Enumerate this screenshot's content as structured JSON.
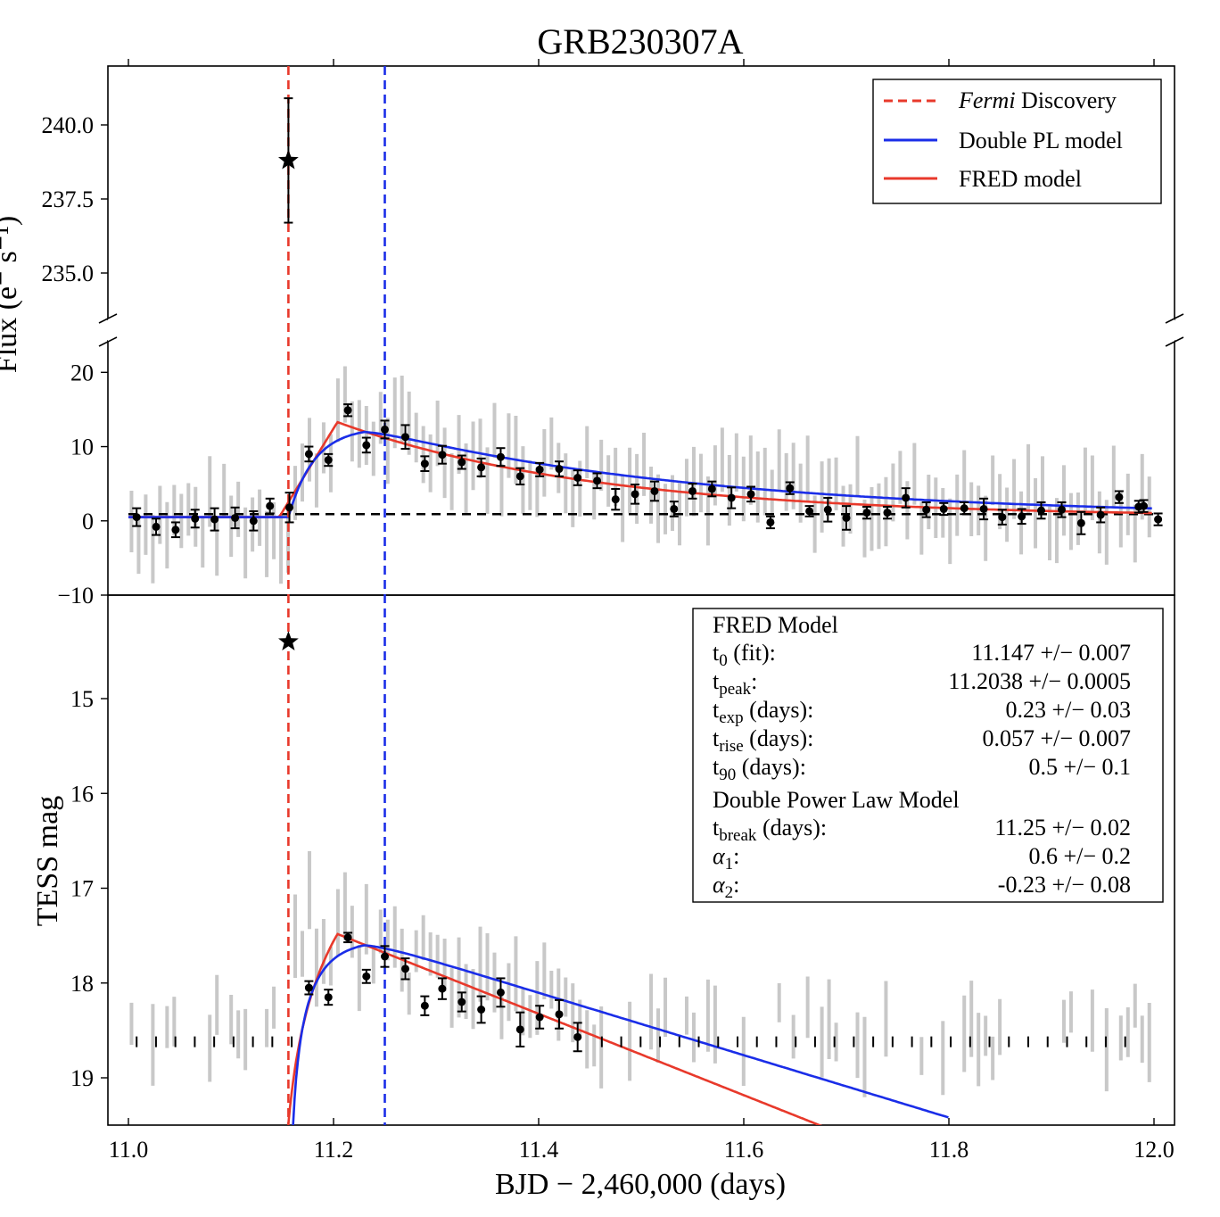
{
  "chart_data": {
    "type": "scatter",
    "title": "GRB230307A",
    "xlabel": "BJD − 2,460,000 (days)",
    "xlim": [
      10.98,
      12.02
    ],
    "x_ticks": [
      "11.0",
      "11.2",
      "11.4",
      "11.6",
      "11.8",
      "12.0"
    ],
    "top_panel": {
      "ylabel": "Flux (e⁻ s⁻¹)",
      "upper_ylim": [
        233.5,
        242
      ],
      "upper_ticks": [
        "235.0",
        "237.5",
        "240.0"
      ],
      "lower_ylim": [
        -10,
        21
      ],
      "lower_ticks": [
        "−10",
        "0",
        "10",
        "20"
      ],
      "fermi_point": {
        "x": 11.156,
        "y": 238.8,
        "err": 2.1
      },
      "baseline": 0.9,
      "binned": [
        {
          "x": 11.008,
          "y": 0.5,
          "e": 1.2
        },
        {
          "x": 11.027,
          "y": -0.8,
          "e": 1.1
        },
        {
          "x": 11.046,
          "y": -1.2,
          "e": 1.0
        },
        {
          "x": 11.065,
          "y": 0.3,
          "e": 1.2
        },
        {
          "x": 11.084,
          "y": 0.2,
          "e": 1.5
        },
        {
          "x": 11.104,
          "y": 0.4,
          "e": 1.4
        },
        {
          "x": 11.122,
          "y": 0.0,
          "e": 1.3
        },
        {
          "x": 11.138,
          "y": 2.0,
          "e": 1.0
        },
        {
          "x": 11.157,
          "y": 1.8,
          "e": 2.0
        },
        {
          "x": 11.176,
          "y": 9.0,
          "e": 1.0
        },
        {
          "x": 11.195,
          "y": 8.2,
          "e": 0.8
        },
        {
          "x": 11.214,
          "y": 14.9,
          "e": 0.8
        },
        {
          "x": 11.232,
          "y": 10.2,
          "e": 1.0
        },
        {
          "x": 11.25,
          "y": 12.3,
          "e": 1.2
        },
        {
          "x": 11.27,
          "y": 11.3,
          "e": 1.6
        },
        {
          "x": 11.289,
          "y": 7.7,
          "e": 1.0
        },
        {
          "x": 11.306,
          "y": 8.9,
          "e": 1.2
        },
        {
          "x": 11.325,
          "y": 7.9,
          "e": 0.9
        },
        {
          "x": 11.344,
          "y": 7.2,
          "e": 1.2
        },
        {
          "x": 11.363,
          "y": 8.6,
          "e": 1.2
        },
        {
          "x": 11.382,
          "y": 6.0,
          "e": 1.1
        },
        {
          "x": 11.401,
          "y": 6.9,
          "e": 0.9
        },
        {
          "x": 11.42,
          "y": 7.0,
          "e": 1.0
        },
        {
          "x": 11.438,
          "y": 5.8,
          "e": 1.0
        },
        {
          "x": 11.457,
          "y": 5.4,
          "e": 1.0
        },
        {
          "x": 11.475,
          "y": 2.9,
          "e": 1.4
        },
        {
          "x": 11.494,
          "y": 3.6,
          "e": 1.3
        },
        {
          "x": 11.513,
          "y": 4.0,
          "e": 1.3
        },
        {
          "x": 11.532,
          "y": 1.6,
          "e": 1.0
        },
        {
          "x": 11.55,
          "y": 4.0,
          "e": 1.0
        },
        {
          "x": 11.569,
          "y": 4.3,
          "e": 1.0
        },
        {
          "x": 11.588,
          "y": 3.1,
          "e": 1.4
        },
        {
          "x": 11.607,
          "y": 3.6,
          "e": 1.0
        },
        {
          "x": 11.626,
          "y": -0.2,
          "e": 0.8
        },
        {
          "x": 11.645,
          "y": 4.4,
          "e": 0.8
        },
        {
          "x": 11.664,
          "y": 1.3,
          "e": 0.7
        },
        {
          "x": 11.682,
          "y": 1.5,
          "e": 1.6
        },
        {
          "x": 11.7,
          "y": 0.4,
          "e": 1.6
        },
        {
          "x": 11.72,
          "y": 1.1,
          "e": 0.8
        },
        {
          "x": 11.74,
          "y": 1.1,
          "e": 0.8
        },
        {
          "x": 11.758,
          "y": 3.1,
          "e": 1.3
        },
        {
          "x": 11.778,
          "y": 1.5,
          "e": 1.0
        },
        {
          "x": 11.795,
          "y": 1.6,
          "e": 0.8
        },
        {
          "x": 11.815,
          "y": 1.7,
          "e": 0.8
        },
        {
          "x": 11.834,
          "y": 1.6,
          "e": 1.4
        },
        {
          "x": 11.852,
          "y": 0.5,
          "e": 1.0
        },
        {
          "x": 11.871,
          "y": 0.6,
          "e": 1.0
        },
        {
          "x": 11.89,
          "y": 1.4,
          "e": 1.1
        },
        {
          "x": 11.91,
          "y": 1.5,
          "e": 1.0
        },
        {
          "x": 11.929,
          "y": -0.3,
          "e": 1.5
        },
        {
          "x": 11.948,
          "y": 0.8,
          "e": 1.0
        },
        {
          "x": 11.966,
          "y": 3.2,
          "e": 0.8
        },
        {
          "x": 11.985,
          "y": 1.9,
          "e": 0.8
        },
        {
          "x": 12.004,
          "y": 0.2,
          "e": 0.8
        },
        {
          "x": 11.99,
          "y": 2.0,
          "e": 0.8
        }
      ]
    },
    "bottom_panel": {
      "ylabel": "TESS mag",
      "ylim": [
        19.5,
        13.4
      ],
      "y_ticks": [
        "15",
        "16",
        "17",
        "18",
        "19"
      ],
      "fermi_point": {
        "x": 11.156,
        "y": 14.4
      },
      "limit_mag": 18.62,
      "binned": [
        {
          "x": 11.176,
          "y": 18.05,
          "e": 0.07
        },
        {
          "x": 11.195,
          "y": 18.15,
          "e": 0.08
        },
        {
          "x": 11.214,
          "y": 17.52,
          "e": 0.05
        },
        {
          "x": 11.232,
          "y": 17.93,
          "e": 0.07
        },
        {
          "x": 11.25,
          "y": 17.72,
          "e": 0.11
        },
        {
          "x": 11.27,
          "y": 17.85,
          "e": 0.11
        },
        {
          "x": 11.289,
          "y": 18.24,
          "e": 0.1
        },
        {
          "x": 11.306,
          "y": 18.06,
          "e": 0.11
        },
        {
          "x": 11.325,
          "y": 18.2,
          "e": 0.1
        },
        {
          "x": 11.344,
          "y": 18.28,
          "e": 0.14
        },
        {
          "x": 11.363,
          "y": 18.1,
          "e": 0.15
        },
        {
          "x": 11.382,
          "y": 18.49,
          "e": 0.18
        },
        {
          "x": 11.401,
          "y": 18.36,
          "e": 0.12
        },
        {
          "x": 11.42,
          "y": 18.33,
          "e": 0.15
        },
        {
          "x": 11.438,
          "y": 18.57,
          "e": 0.15
        }
      ]
    },
    "lines": {
      "fermi_discovery_x": 11.156,
      "break_x": 11.25
    },
    "legend": {
      "placement": "top-right",
      "entries": [
        {
          "prefix": "Fermi",
          "label": " Discovery",
          "color": "#e8392b",
          "dash": true
        },
        {
          "prefix": "",
          "label": "Double PL model",
          "color": "#1a2de8",
          "dash": false
        },
        {
          "prefix": "",
          "label": "FRED model",
          "color": "#e8392b",
          "dash": false
        }
      ]
    },
    "info_box": {
      "fred_heading": "FRED Model",
      "fred_rows": [
        {
          "sym": "t",
          "sub": "0",
          "suffix": " (fit):",
          "value": "11.147 +/−  0.007"
        },
        {
          "sym": "t",
          "sub": "peak",
          "suffix": ":",
          "value": "11.2038 +/− 0.0005"
        },
        {
          "sym": "t",
          "sub": "exp",
          "suffix": " (days):",
          "value": "0.23 +/−   0.03"
        },
        {
          "sym": "t",
          "sub": "rise",
          "suffix": " (days):",
          "value": "0.057 +/−  0.007"
        },
        {
          "sym": "t",
          "sub": "90",
          "suffix": " (days):",
          "value": "0.5 +/−    0.1"
        }
      ],
      "dpl_heading": "Double Power Law Model",
      "dpl_rows": [
        {
          "sym": "t",
          "sub": "break",
          "suffix": " (days):",
          "value": "11.25 +/−   0.02"
        },
        {
          "sym": "α",
          "sub": "1",
          "suffix": ":",
          "value": "0.6 +/−    0.2"
        },
        {
          "sym": "α",
          "sub": "2",
          "suffix": ":",
          "value": "-0.23 +/−   0.08"
        }
      ]
    },
    "colors": {
      "fred": "#e8392b",
      "dpl": "#1a2de8",
      "raw": "#c8c8c8",
      "points": "#000000"
    }
  }
}
